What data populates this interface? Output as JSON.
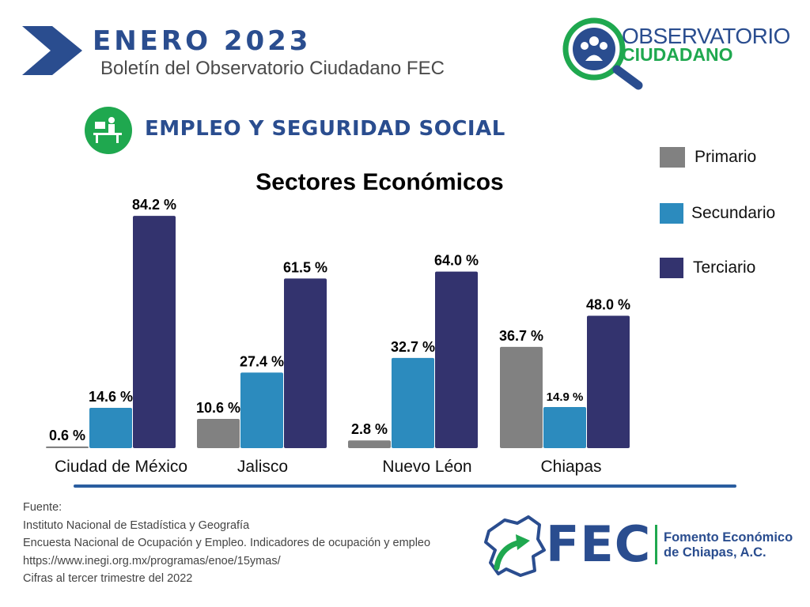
{
  "header": {
    "title": "ENERO  2023",
    "subtitle": "Boletín del Observatorio Ciudadano FEC"
  },
  "logo": {
    "line1": "OBSERVATORIO",
    "line2": "CIUDADANO"
  },
  "section": {
    "title": "EMPLEO Y SEGURIDAD SOCIAL",
    "icon": "desk-worker-icon"
  },
  "colors": {
    "brand_blue": "#2a4d8f",
    "brand_green": "#1fa84f",
    "primario": "#818181",
    "secundario": "#2c8bbe",
    "terciario": "#33336e"
  },
  "chart_data": {
    "type": "bar",
    "title": "Sectores Económicos",
    "categories": [
      "Ciudad de México",
      "Jalisco",
      "Nuevo Léon",
      "Chiapas"
    ],
    "series": [
      {
        "name": "Primario",
        "values": [
          0.6,
          10.6,
          2.8,
          36.7
        ],
        "labels": [
          "0.6 %",
          "10.6 %",
          "2.8 %",
          "36.7 %"
        ]
      },
      {
        "name": "Secundario",
        "values": [
          14.6,
          27.4,
          32.7,
          14.9
        ],
        "labels": [
          "14.6 %",
          "27.4 %",
          "32.7 %",
          "14.9 %"
        ]
      },
      {
        "name": "Terciario",
        "values": [
          84.2,
          61.5,
          64.0,
          48.0
        ],
        "labels": [
          "84.2 %",
          "61.5 %",
          "64.0 %",
          "48.0 %"
        ]
      }
    ],
    "ylim": [
      0,
      100
    ],
    "grid": false,
    "legend": "right"
  },
  "source": {
    "lines": [
      "Fuente:",
      "Instituto Nacional de Estadística y Geografía",
      "Encuesta Nacional de Ocupación y Empleo. Indicadores de ocupación y empleo",
      "https://www.inegi.org.mx/programas/enoe/15ymas/",
      "Cifras al tercer trimestre del 2022"
    ]
  },
  "footer_logo": {
    "acronym": "FEC",
    "line1": "Fomento Económico",
    "line2": "de Chiapas, A.C."
  }
}
